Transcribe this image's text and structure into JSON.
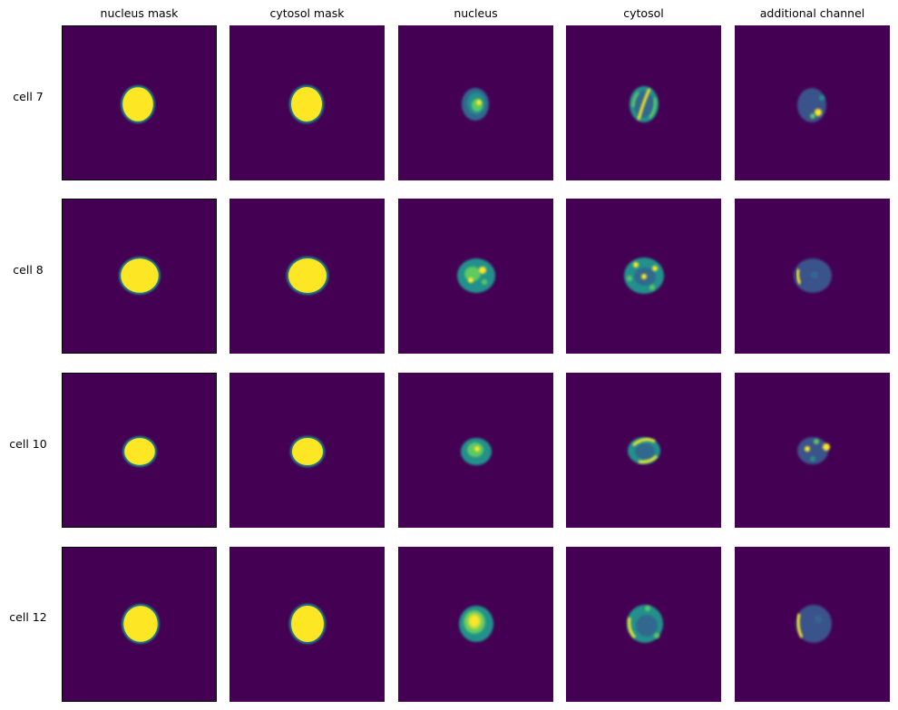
{
  "columns": [
    "nucleus mask",
    "cytosol mask",
    "nucleus",
    "cytosol",
    "additional channel"
  ],
  "rows": [
    "cell 7",
    "cell 8",
    "cell 10",
    "cell 12"
  ],
  "colormap": {
    "name": "viridis",
    "background": "#440154",
    "high": "#fde725",
    "mid": "#21918c",
    "low_mid": "#31688e",
    "dark": "#3b528b",
    "green": "#5ec962"
  },
  "axes_frame_column": "nucleus mask"
}
